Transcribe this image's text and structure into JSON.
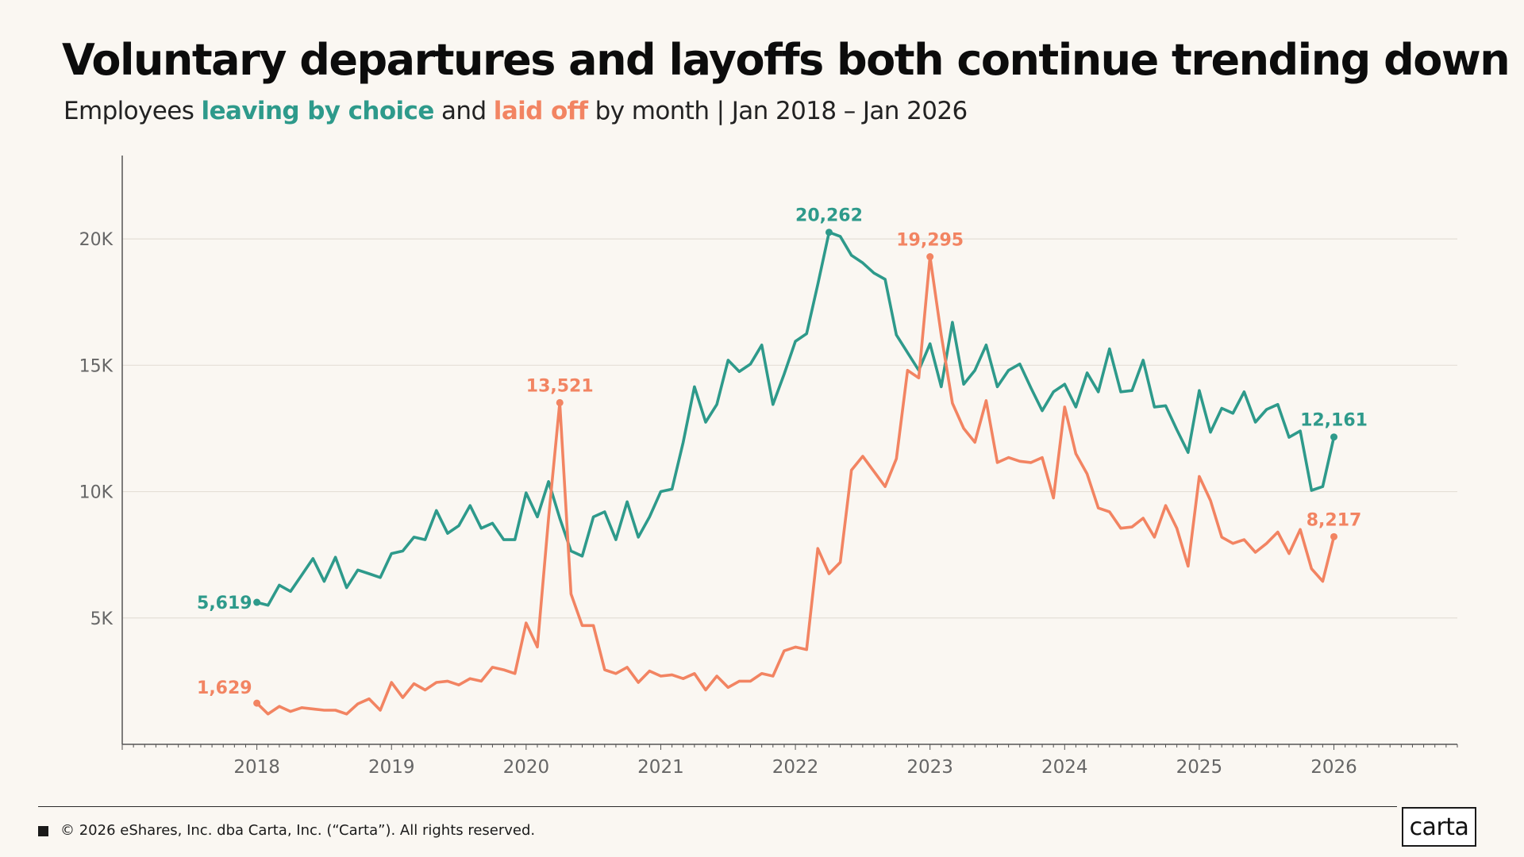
{
  "title": "Voluntary departures and layoffs both continue trending down",
  "subtitle": {
    "prefix": "Employees ",
    "series1": "leaving by choice",
    "mid": " and ",
    "series2": "laid off",
    "suffix": " by month | Jan 2018 – Jan 2026"
  },
  "footer": {
    "copyright": "© 2026 eShares, Inc. dba Carta, Inc. (“Carta”). All rights reserved.",
    "logo": "carta"
  },
  "colors": {
    "leaving": "#2e9a8b",
    "laidoff": "#f28462",
    "grid": "#e4dfd6",
    "axis": "#555555",
    "tick_label": "#666666"
  },
  "chart_data": {
    "type": "line",
    "title": "Voluntary departures and layoffs both continue trending down",
    "xlabel": "",
    "ylabel": "",
    "x_start": "2018-01",
    "x_end": "2026-01",
    "x_frequency": "monthly",
    "xlim": [
      "2017-01",
      "2026-12"
    ],
    "ylim": [
      0,
      23300
    ],
    "y_ticks": [
      5000,
      10000,
      15000,
      20000
    ],
    "y_tick_labels": [
      "5K",
      "10K",
      "15K",
      "20K"
    ],
    "x_ticks": [
      "2018",
      "2019",
      "2020",
      "2021",
      "2022",
      "2023",
      "2024",
      "2025",
      "2026"
    ],
    "grid": true,
    "legend": "none (series named in subtitle)",
    "series": [
      {
        "name": "leaving by choice",
        "color": "#2e9a8b",
        "values": [
          5619,
          5500,
          6300,
          6050,
          6700,
          7350,
          6450,
          7400,
          6200,
          6900,
          6750,
          6600,
          7550,
          7650,
          8200,
          8100,
          9250,
          8350,
          8650,
          9450,
          8550,
          8750,
          8100,
          8100,
          9950,
          9000,
          10400,
          8950,
          7650,
          7450,
          9000,
          9200,
          8100,
          9600,
          8200,
          9000,
          10000,
          10100,
          11950,
          14150,
          12750,
          13450,
          15200,
          14750,
          15050,
          15800,
          13450,
          14650,
          15950,
          16250,
          18200,
          20262,
          20100,
          19350,
          19050,
          18650,
          18400,
          16200,
          15500,
          14800,
          15850,
          14150,
          16700,
          14250,
          14800,
          15800,
          14150,
          14800,
          15050,
          14100,
          13200,
          13950,
          14250,
          13350,
          14700,
          13950,
          15650,
          13950,
          14000,
          15200,
          13350,
          13400,
          12450,
          11550,
          14000,
          12350,
          13300,
          13100,
          13950,
          12750,
          13250,
          13450,
          12150,
          12400,
          10050,
          10200,
          12161
        ]
      },
      {
        "name": "laid off",
        "color": "#f28462",
        "values": [
          1629,
          1200,
          1500,
          1300,
          1450,
          1400,
          1350,
          1350,
          1200,
          1600,
          1800,
          1350,
          2450,
          1850,
          2400,
          2150,
          2450,
          2500,
          2350,
          2600,
          2500,
          3050,
          2950,
          2800,
          4800,
          3850,
          8950,
          13521,
          5950,
          4700,
          4700,
          2950,
          2800,
          3050,
          2450,
          2900,
          2700,
          2750,
          2600,
          2800,
          2150,
          2700,
          2250,
          2500,
          2500,
          2800,
          2700,
          3700,
          3850,
          3750,
          7750,
          6750,
          7200,
          10850,
          11400,
          10800,
          10200,
          11300,
          14800,
          14500,
          19295,
          16200,
          13500,
          12500,
          11950,
          13600,
          11150,
          11350,
          11200,
          11150,
          11350,
          9750,
          13350,
          11500,
          10700,
          9350,
          9200,
          8550,
          8600,
          8950,
          8200,
          9450,
          8550,
          7050,
          10600,
          9650,
          8200,
          7950,
          8100,
          7600,
          7950,
          8400,
          7550,
          8500,
          6950,
          6450,
          8217
        ]
      }
    ],
    "annotations": [
      {
        "series": "leaving by choice",
        "date": "2018-01",
        "text": "5,619"
      },
      {
        "series": "leaving by choice",
        "date": "2022-04",
        "text": "20,262"
      },
      {
        "series": "leaving by choice",
        "date": "2026-01",
        "text": "12,161"
      },
      {
        "series": "laid off",
        "date": "2018-01",
        "text": "1,629"
      },
      {
        "series": "laid off",
        "date": "2020-04",
        "text": "13,521"
      },
      {
        "series": "laid off",
        "date": "2023-01",
        "text": "19,295"
      },
      {
        "series": "laid off",
        "date": "2026-01",
        "text": "8,217"
      }
    ]
  }
}
